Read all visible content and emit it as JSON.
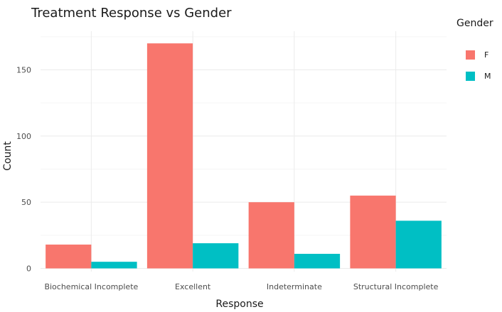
{
  "chart_data": {
    "type": "bar",
    "title": "Treatment Response vs Gender",
    "xlabel": "Response",
    "ylabel": "Count",
    "categories": [
      "Biochemical Incomplete",
      "Excellent",
      "Indeterminate",
      "Structural Incomplete"
    ],
    "series": [
      {
        "name": "F",
        "color": "#F8766D",
        "values": [
          18,
          170,
          50,
          55
        ]
      },
      {
        "name": "M",
        "color": "#00BFC4",
        "values": [
          5,
          19,
          11,
          36
        ]
      }
    ],
    "ylim": [
      0,
      175
    ],
    "yticks": [
      0,
      50,
      100,
      150
    ],
    "grid": true,
    "legend": {
      "title": "Gender",
      "placement": "right"
    }
  }
}
